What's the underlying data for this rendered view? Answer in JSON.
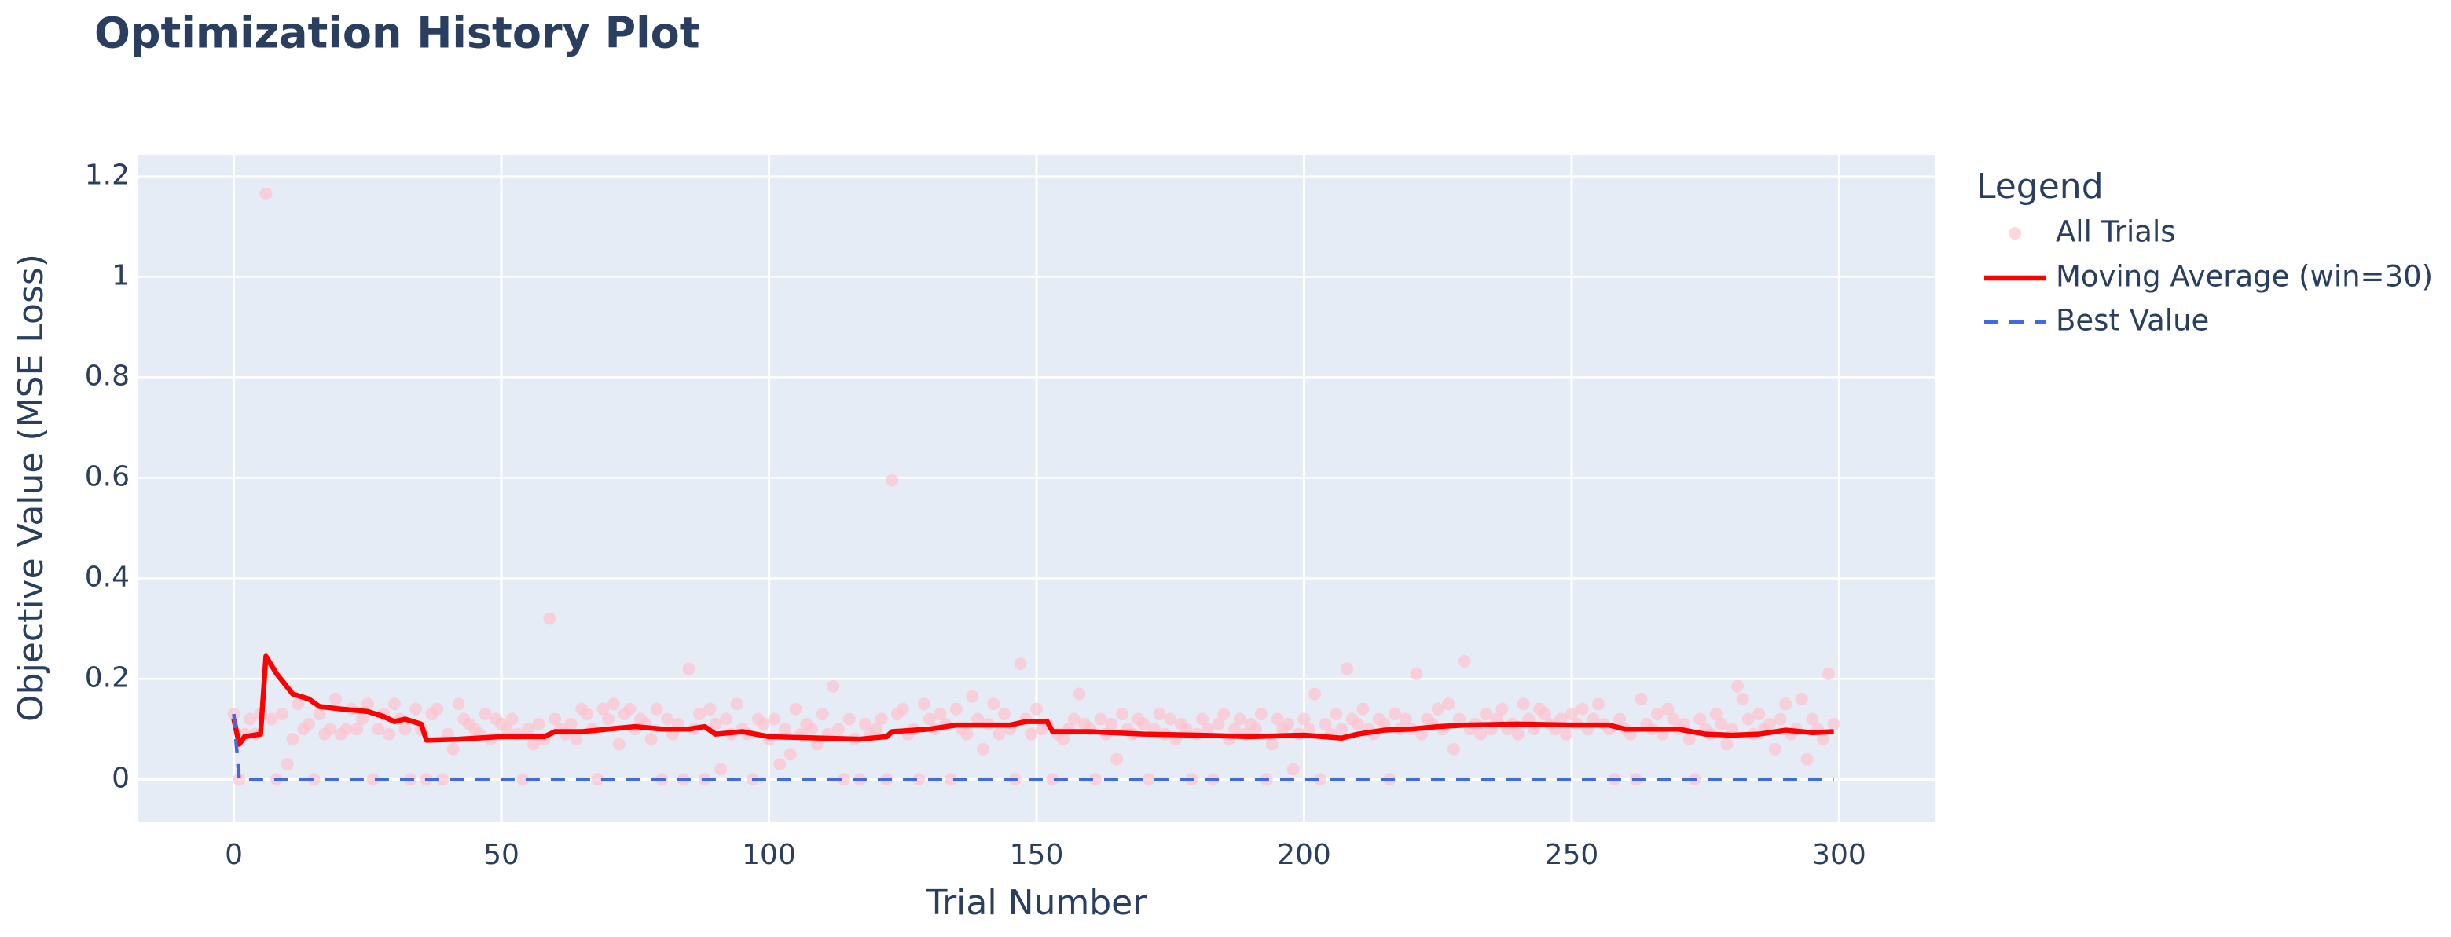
{
  "chart_data": {
    "type": "scatter",
    "title": "Optimization History Plot",
    "x_label": "Trial Number",
    "y_label": "Objective Value (MSE Loss)",
    "legend_title": "Legend",
    "legend": "right",
    "grid": true,
    "xlim": [
      -18,
      318
    ],
    "ylim": [
      -0.084,
      1.243
    ],
    "xticks": [
      0,
      50,
      100,
      150,
      200,
      250,
      300
    ],
    "yticks": [
      0,
      0.2,
      0.4,
      0.6,
      0.8,
      1,
      1.2
    ],
    "series": [
      {
        "name": "All Trials",
        "type": "scatter",
        "color": "#ffc0cb",
        "x": [
          0,
          1,
          2,
          3,
          4,
          5,
          6,
          7,
          8,
          9,
          10,
          11,
          12,
          13,
          14,
          15,
          16,
          17,
          18,
          19,
          20,
          21,
          22,
          23,
          24,
          25,
          26,
          27,
          28,
          29,
          30,
          31,
          32,
          33,
          34,
          35,
          36,
          37,
          38,
          39,
          40,
          41,
          42,
          43,
          44,
          45,
          46,
          47,
          48,
          49,
          50,
          51,
          52,
          53,
          54,
          55,
          56,
          57,
          58,
          59,
          60,
          61,
          62,
          63,
          64,
          65,
          66,
          67,
          68,
          69,
          70,
          71,
          72,
          73,
          74,
          75,
          76,
          77,
          78,
          79,
          80,
          81,
          82,
          83,
          84,
          85,
          86,
          87,
          88,
          89,
          90,
          91,
          92,
          93,
          94,
          95,
          96,
          97,
          98,
          99,
          100,
          101,
          102,
          103,
          104,
          105,
          106,
          107,
          108,
          109,
          110,
          111,
          112,
          113,
          114,
          115,
          116,
          117,
          118,
          119,
          120,
          121,
          122,
          123,
          124,
          125,
          126,
          127,
          128,
          129,
          130,
          131,
          132,
          133,
          134,
          135,
          136,
          137,
          138,
          139,
          140,
          141,
          142,
          143,
          144,
          145,
          146,
          147,
          148,
          149,
          150,
          151,
          152,
          153,
          154,
          155,
          156,
          157,
          158,
          159,
          160,
          161,
          162,
          163,
          164,
          165,
          166,
          167,
          168,
          169,
          170,
          171,
          172,
          173,
          174,
          175,
          176,
          177,
          178,
          179,
          180,
          181,
          182,
          183,
          184,
          185,
          186,
          187,
          188,
          189,
          190,
          191,
          192,
          193,
          194,
          195,
          196,
          197,
          198,
          199,
          200,
          201,
          202,
          203,
          204,
          205,
          206,
          207,
          208,
          209,
          210,
          211,
          212,
          213,
          214,
          215,
          216,
          217,
          218,
          219,
          220,
          221,
          222,
          223,
          224,
          225,
          226,
          227,
          228,
          229,
          230,
          231,
          232,
          233,
          234,
          235,
          236,
          237,
          238,
          239,
          240,
          241,
          242,
          243,
          244,
          245,
          246,
          247,
          248,
          249,
          250,
          251,
          252,
          253,
          254,
          255,
          256,
          257,
          258,
          259,
          260,
          261,
          262,
          263,
          264,
          265,
          266,
          267,
          268,
          269,
          270,
          271,
          272,
          273,
          274,
          275,
          276,
          277,
          278,
          279,
          280,
          281,
          282,
          283,
          284,
          285,
          286,
          287,
          288,
          289,
          290,
          291,
          292,
          293,
          294,
          295,
          296,
          297,
          298,
          299
        ],
        "values": [
          0.13,
          0.0,
          0.09,
          0.12,
          0.09,
          0.13,
          1.165,
          0.12,
          0.0,
          0.13,
          0.03,
          0.08,
          0.15,
          0.1,
          0.11,
          0.0,
          0.13,
          0.09,
          0.1,
          0.16,
          0.09,
          0.1,
          0.14,
          0.1,
          0.12,
          0.15,
          0.0,
          0.1,
          0.13,
          0.09,
          0.15,
          0.12,
          0.1,
          0.0,
          0.14,
          0.1,
          0.0,
          0.13,
          0.14,
          0.0,
          0.09,
          0.06,
          0.15,
          0.12,
          0.11,
          0.1,
          0.09,
          0.13,
          0.08,
          0.12,
          0.11,
          0.1,
          0.12,
          0.09,
          0.0,
          0.1,
          0.07,
          0.11,
          0.08,
          0.32,
          0.12,
          0.1,
          0.09,
          0.11,
          0.08,
          0.14,
          0.13,
          0.1,
          0.0,
          0.14,
          0.12,
          0.15,
          0.07,
          0.13,
          0.14,
          0.1,
          0.12,
          0.11,
          0.08,
          0.14,
          0.0,
          0.12,
          0.09,
          0.11,
          0.0,
          0.22,
          0.1,
          0.13,
          0.0,
          0.14,
          0.11,
          0.02,
          0.12,
          0.09,
          0.15,
          0.1,
          0.09,
          0.0,
          0.12,
          0.11,
          0.08,
          0.12,
          0.03,
          0.1,
          0.05,
          0.14,
          0.09,
          0.11,
          0.1,
          0.07,
          0.13,
          0.09,
          0.185,
          0.1,
          0.0,
          0.12,
          0.08,
          0.0,
          0.11,
          0.09,
          0.1,
          0.12,
          0.0,
          0.595,
          0.13,
          0.14,
          0.09,
          0.1,
          0.0,
          0.15,
          0.12,
          0.1,
          0.13,
          0.11,
          0.0,
          0.14,
          0.1,
          0.09,
          0.165,
          0.12,
          0.06,
          0.11,
          0.15,
          0.09,
          0.13,
          0.1,
          0.0,
          0.23,
          0.12,
          0.09,
          0.14,
          0.1,
          0.11,
          0.0,
          0.09,
          0.08,
          0.1,
          0.12,
          0.17,
          0.11,
          0.1,
          0.0,
          0.12,
          0.09,
          0.11,
          0.04,
          0.13,
          0.1,
          0.09,
          0.12,
          0.11,
          0.0,
          0.1,
          0.13,
          0.09,
          0.12,
          0.08,
          0.11,
          0.1,
          0.0,
          0.09,
          0.12,
          0.1,
          0.0,
          0.11,
          0.13,
          0.08,
          0.1,
          0.12,
          0.09,
          0.11,
          0.1,
          0.13,
          0.0,
          0.07,
          0.12,
          0.1,
          0.11,
          0.02,
          0.09,
          0.12,
          0.1,
          0.17,
          0.0,
          0.11,
          0.09,
          0.13,
          0.1,
          0.22,
          0.12,
          0.11,
          0.14,
          0.1,
          0.09,
          0.12,
          0.11,
          0.0,
          0.13,
          0.1,
          0.12,
          0.1,
          0.21,
          0.09,
          0.12,
          0.11,
          0.14,
          0.1,
          0.15,
          0.06,
          0.12,
          0.235,
          0.1,
          0.11,
          0.09,
          0.13,
          0.1,
          0.12,
          0.14,
          0.1,
          0.11,
          0.09,
          0.15,
          0.12,
          0.1,
          0.14,
          0.13,
          0.11,
          0.1,
          0.12,
          0.09,
          0.13,
          0.11,
          0.14,
          0.1,
          0.12,
          0.15,
          0.11,
          0.1,
          0.0,
          0.12,
          0.1,
          0.09,
          0.0,
          0.16,
          0.11,
          0.1,
          0.13,
          0.09,
          0.14,
          0.12,
          0.1,
          0.11,
          0.08,
          0.0,
          0.12,
          0.1,
          0.09,
          0.13,
          0.11,
          0.07,
          0.1,
          0.185,
          0.16,
          0.12,
          0.09,
          0.13,
          0.1,
          0.11,
          0.06,
          0.12,
          0.15,
          0.09,
          0.1,
          0.16,
          0.04,
          0.12,
          0.1,
          0.08,
          0.21,
          0.11
        ]
      },
      {
        "name": "Moving Average (win=30)",
        "type": "line",
        "color": "#ff0000",
        "x": [
          0,
          1,
          2,
          5,
          6,
          8,
          11,
          14,
          16,
          20,
          25,
          28,
          30,
          32,
          35,
          36,
          42,
          50,
          58,
          60,
          65,
          70,
          75,
          80,
          85,
          88,
          90,
          95,
          100,
          110,
          117,
          122,
          123,
          130,
          135,
          145,
          148,
          152,
          153,
          160,
          170,
          180,
          190,
          200,
          207,
          210,
          215,
          220,
          225,
          230,
          240,
          250,
          257,
          260,
          270,
          275,
          280,
          285,
          290,
          295,
          299
        ],
        "values": [
          0.12,
          0.07,
          0.085,
          0.09,
          0.245,
          0.21,
          0.17,
          0.16,
          0.145,
          0.14,
          0.135,
          0.125,
          0.115,
          0.12,
          0.11,
          0.078,
          0.08,
          0.085,
          0.085,
          0.095,
          0.095,
          0.1,
          0.105,
          0.1,
          0.1,
          0.105,
          0.09,
          0.095,
          0.085,
          0.082,
          0.08,
          0.085,
          0.095,
          0.1,
          0.108,
          0.108,
          0.115,
          0.115,
          0.095,
          0.095,
          0.09,
          0.088,
          0.085,
          0.088,
          0.082,
          0.09,
          0.098,
          0.1,
          0.105,
          0.108,
          0.11,
          0.108,
          0.108,
          0.1,
          0.1,
          0.09,
          0.088,
          0.09,
          0.098,
          0.093,
          0.095
        ]
      },
      {
        "name": "Best Value",
        "type": "line",
        "color": "#4169e1",
        "dash": true,
        "x": [
          0,
          1,
          299
        ],
        "values": [
          0.13,
          0.0,
          0.0
        ]
      }
    ]
  }
}
